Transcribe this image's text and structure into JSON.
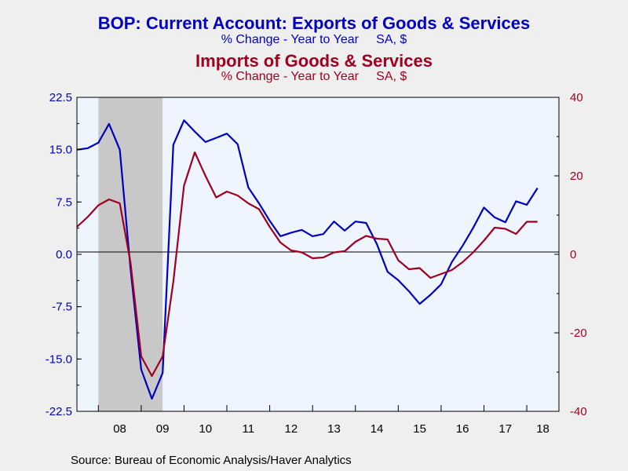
{
  "colors": {
    "exports": "#0000c0",
    "imports": "#a00020",
    "recession_shade": "#c8c8c8",
    "plot_bg": "#eef5ff",
    "page_bg": "#efefef"
  },
  "chart_data": {
    "type": "line",
    "title": "BOP: Current Account: Exports of Goods & Services",
    "subtitle": "% Change - Year to Year     SA, $",
    "title2": "Imports of Goods & Services",
    "subtitle2": "% Change - Year to Year     SA, $",
    "source": "Source:  Bureau of Economic Analysis/Haver Analytics",
    "x_range": [
      2007.5,
      2018.75
    ],
    "x_tick_labels": [
      "08",
      "09",
      "10",
      "11",
      "12",
      "13",
      "14",
      "15",
      "16",
      "17",
      "18"
    ],
    "y_left": {
      "range": [
        -22.5,
        22.5
      ],
      "tick_labels": [
        "22.5",
        "15.0",
        "7.5",
        "0.0",
        "-7.5",
        "-15.0",
        "-22.5"
      ]
    },
    "y_right": {
      "range": [
        -40,
        40
      ],
      "tick_labels": [
        "40",
        "20",
        "0",
        "-20",
        "-40"
      ]
    },
    "recession_shading": [
      2008.0,
      2009.5
    ],
    "grid": false,
    "legend": "title-colored",
    "series": [
      {
        "name": "BOP: Current Account: Exports of Goods & Services",
        "axis": "left",
        "x": [
          2007.5,
          2007.75,
          2008.0,
          2008.25,
          2008.5,
          2008.75,
          2009.0,
          2009.25,
          2009.5,
          2009.75,
          2010.0,
          2010.25,
          2010.5,
          2010.75,
          2011.0,
          2011.25,
          2011.5,
          2011.75,
          2012.0,
          2012.25,
          2012.5,
          2012.75,
          2013.0,
          2013.25,
          2013.5,
          2013.75,
          2014.0,
          2014.25,
          2014.5,
          2014.75,
          2015.0,
          2015.25,
          2015.5,
          2015.75,
          2016.0,
          2016.25,
          2016.5,
          2016.75,
          2017.0,
          2017.25,
          2017.5,
          2017.75,
          2018.0,
          2018.25
        ],
        "y": [
          15.0,
          15.2,
          16.0,
          18.7,
          15.0,
          -2.0,
          -16.5,
          -20.7,
          -17.0,
          15.7,
          19.2,
          17.6,
          16.1,
          16.7,
          17.3,
          15.8,
          9.6,
          7.3,
          4.8,
          2.6,
          3.1,
          3.5,
          2.6,
          2.9,
          4.7,
          3.4,
          4.7,
          4.5,
          1.5,
          -2.5,
          -3.7,
          -5.3,
          -7.1,
          -5.8,
          -4.3,
          -1.1,
          1.2,
          3.8,
          6.7,
          5.3,
          4.6,
          7.6,
          7.1,
          9.5
        ]
      },
      {
        "name": "Imports of Goods & Services",
        "axis": "right",
        "x": [
          2007.5,
          2007.75,
          2008.0,
          2008.25,
          2008.5,
          2008.75,
          2009.0,
          2009.25,
          2009.5,
          2009.75,
          2010.0,
          2010.25,
          2010.5,
          2010.75,
          2011.0,
          2011.25,
          2011.5,
          2011.75,
          2012.0,
          2012.25,
          2012.5,
          2012.75,
          2013.0,
          2013.25,
          2013.5,
          2013.75,
          2014.0,
          2014.25,
          2014.5,
          2014.75,
          2015.0,
          2015.25,
          2015.5,
          2015.75,
          2016.0,
          2016.25,
          2016.5,
          2016.75,
          2017.0,
          2017.25,
          2017.5,
          2017.75,
          2018.0,
          2018.25
        ],
        "y": [
          7,
          9.5,
          12.5,
          14,
          13,
          -2,
          -26,
          -31,
          -26,
          -7,
          17.5,
          26,
          20,
          14.5,
          16,
          15,
          13,
          11.5,
          7,
          3,
          1,
          0.5,
          -1,
          -0.8,
          0.5,
          0.8,
          3.2,
          4.7,
          4,
          3.8,
          -1.5,
          -3.8,
          -3.5,
          -6,
          -5,
          -4,
          -2,
          0.5,
          3.5,
          6.8,
          6.5,
          5.2,
          8.3,
          8.3
        ]
      }
    ]
  }
}
